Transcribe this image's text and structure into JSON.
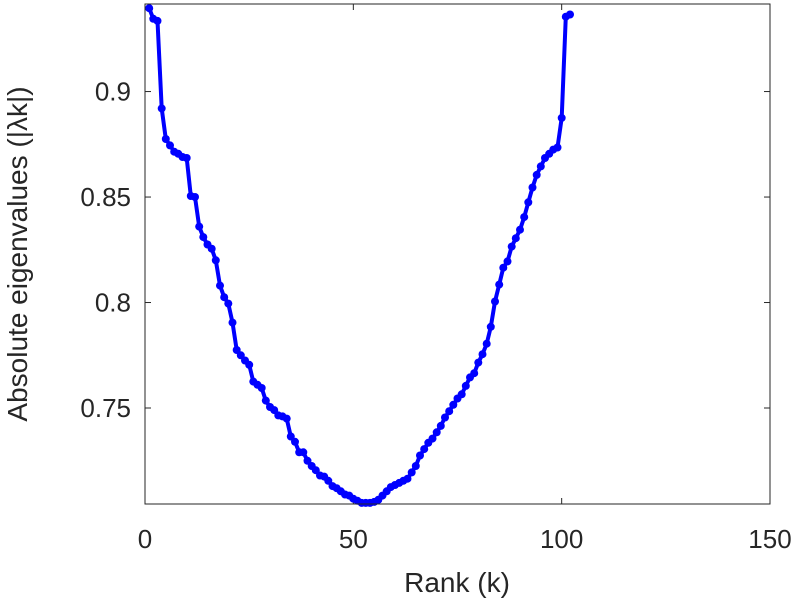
{
  "chart_data": {
    "type": "line",
    "xlabel": "Rank (k)",
    "ylabel": "Absolute eigenvalues (|λk|)",
    "xlim": [
      0,
      150
    ],
    "ylim": [
      0.7045,
      0.9415
    ],
    "xticks": [
      {
        "value": 0,
        "label": "0"
      },
      {
        "value": 50,
        "label": "50"
      },
      {
        "value": 100,
        "label": "100"
      },
      {
        "value": 150,
        "label": "150"
      }
    ],
    "yticks": [
      {
        "value": 0.75,
        "label": "0.75"
      },
      {
        "value": 0.8,
        "label": "0.8"
      },
      {
        "value": 0.85,
        "label": "0.85"
      },
      {
        "value": 0.9,
        "label": "0.9"
      }
    ],
    "grid": false,
    "series": [
      {
        "color": "#0000ff",
        "x": [
          1,
          2,
          3,
          4,
          5,
          6,
          7,
          8,
          9,
          10,
          11,
          12,
          13,
          14,
          15,
          16,
          17,
          18,
          19,
          20,
          21,
          22,
          23,
          24,
          25,
          26,
          27,
          28,
          29,
          30,
          31,
          32,
          33,
          34,
          35,
          36,
          37,
          38,
          39,
          40,
          41,
          42,
          43,
          44,
          45,
          46,
          47,
          48,
          49,
          50,
          51,
          52,
          53,
          54,
          55,
          56,
          57,
          58,
          59,
          60,
          61,
          62,
          63,
          64,
          65,
          66,
          67,
          68,
          69,
          70,
          71,
          72,
          73,
          74,
          75,
          76,
          77,
          78,
          79,
          80,
          81,
          82,
          83,
          84,
          85,
          86,
          87,
          88,
          89,
          90,
          91,
          92,
          93,
          94,
          95,
          96,
          97,
          98,
          99,
          100,
          101,
          102
        ],
        "y": [
          0.9395,
          0.9345,
          0.9335,
          0.892,
          0.8775,
          0.8745,
          0.8715,
          0.8705,
          0.869,
          0.8685,
          0.8505,
          0.85,
          0.836,
          0.831,
          0.8275,
          0.8255,
          0.82,
          0.808,
          0.8025,
          0.7995,
          0.7905,
          0.7775,
          0.775,
          0.7725,
          0.7705,
          0.7625,
          0.761,
          0.7595,
          0.7535,
          0.7505,
          0.749,
          0.7465,
          0.746,
          0.745,
          0.7365,
          0.734,
          0.729,
          0.729,
          0.725,
          0.7225,
          0.7205,
          0.718,
          0.7175,
          0.7155,
          0.713,
          0.712,
          0.7105,
          0.709,
          0.7085,
          0.707,
          0.706,
          0.705,
          0.705,
          0.705,
          0.7055,
          0.7065,
          0.7085,
          0.7105,
          0.7125,
          0.7135,
          0.7145,
          0.7155,
          0.7165,
          0.7195,
          0.7225,
          0.7275,
          0.7305,
          0.7335,
          0.7355,
          0.7385,
          0.7415,
          0.7455,
          0.7485,
          0.7515,
          0.7545,
          0.7565,
          0.7605,
          0.7645,
          0.7665,
          0.7715,
          0.7755,
          0.7805,
          0.7885,
          0.8005,
          0.8085,
          0.8165,
          0.8195,
          0.8265,
          0.8305,
          0.8345,
          0.8405,
          0.8475,
          0.8545,
          0.8605,
          0.8645,
          0.8685,
          0.8705,
          0.8725,
          0.8735,
          0.8875,
          0.9355,
          0.9365
        ]
      }
    ]
  }
}
